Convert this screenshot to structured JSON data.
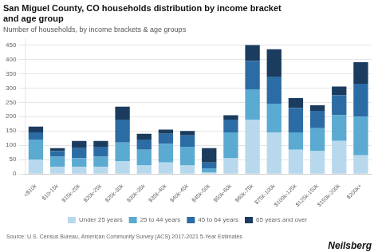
{
  "chart_data": {
    "type": "bar",
    "title": [
      "San Miguel County, CO households distribution by income bracket",
      "and age group"
    ],
    "subtitle": "Number of households, by income brackets & age groups",
    "annotations": [
      "Source: U.S. Census Bureau, American Community Survey (ACS) 2017-2021 5-Year Estimates",
      "Neilsberg"
    ],
    "categories": [
      "<$10k",
      "$10-15k",
      "$15k-20k",
      "$20k-25k",
      "$25k-30k",
      "$30k-35k",
      "$35k-40k",
      "$40k-45k",
      "$45k-50k",
      "$50k-60k",
      "$60k-75k",
      "$75k-100k",
      "$100k-125k",
      "$125k-150k",
      "$150k-200k",
      "$200k+"
    ],
    "series": [
      {
        "name": "Under 25 years",
        "color": "#b8d9ed",
        "values": [
          50,
          25,
          25,
          25,
          45,
          30,
          40,
          30,
          5,
          55,
          190,
          145,
          85,
          80,
          115,
          65
        ]
      },
      {
        "name": "25 to 44 years",
        "color": "#5aaad1",
        "values": [
          70,
          35,
          30,
          35,
          65,
          55,
          65,
          65,
          15,
          90,
          105,
          100,
          60,
          80,
          90,
          135
        ]
      },
      {
        "name": "45 to 64 years",
        "color": "#2c6ca4",
        "values": [
          25,
          20,
          35,
          35,
          80,
          35,
          35,
          40,
          20,
          45,
          100,
          95,
          85,
          60,
          70,
          115
        ]
      },
      {
        "name": "65 years and over",
        "color": "#1b3c5e",
        "values": [
          20,
          10,
          25,
          20,
          45,
          20,
          15,
          15,
          50,
          15,
          55,
          95,
          35,
          20,
          30,
          75
        ]
      }
    ],
    "ylim": [
      0,
      470
    ],
    "yticks": [
      0,
      50,
      100,
      150,
      200,
      250,
      300,
      350,
      400,
      450
    ],
    "stacked": true,
    "grid": true,
    "legend": "bottom"
  }
}
